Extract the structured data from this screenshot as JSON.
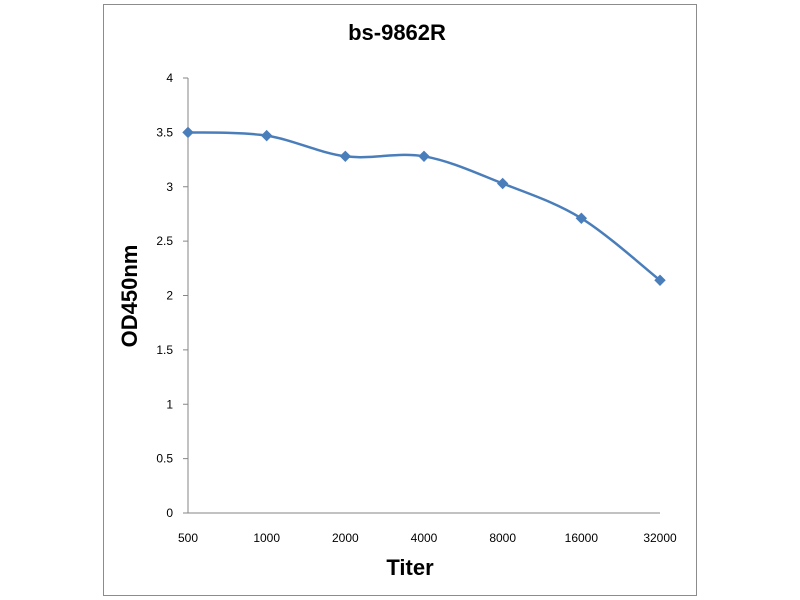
{
  "chart_data": {
    "type": "line",
    "title": "bs-9862R",
    "xlabel": "Titer",
    "ylabel": "OD450nm",
    "categories": [
      "500",
      "1000",
      "2000",
      "4000",
      "8000",
      "16000",
      "32000"
    ],
    "series": [
      {
        "values": [
          3.5,
          3.47,
          3.28,
          3.28,
          3.03,
          2.71,
          2.14
        ]
      }
    ],
    "ylim": [
      0,
      4
    ],
    "yticks": [
      "0",
      "0.5",
      "1",
      "1.5",
      "2",
      "2.5",
      "3",
      "3.5",
      "4"
    ],
    "grid": false,
    "line_color": "#4a7ebb",
    "marker": "diamond"
  }
}
